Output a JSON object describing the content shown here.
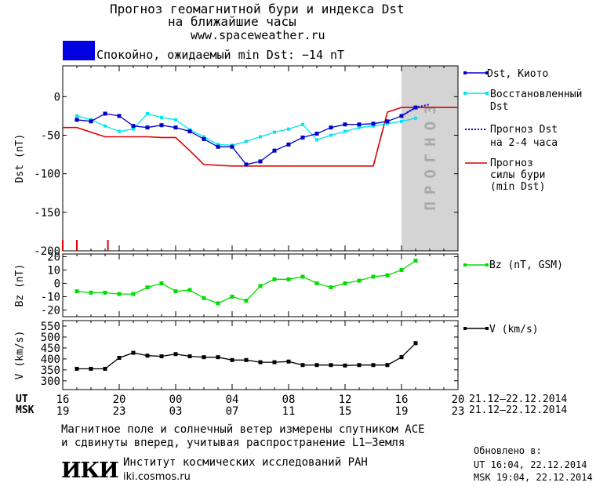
{
  "header": {
    "title_line1": "Прогноз геомагнитной бури и индекса Dst",
    "title_line2": "на ближайшие часы",
    "url": "www.spaceweather.ru",
    "status_text": "Спокойно, ожидаемый min Dst: −14 nT",
    "status_color": "#0000e0"
  },
  "colors": {
    "dst_kyoto": "#0000cc",
    "dst_restored": "#00e5ee",
    "dst_forecast": "#0000dd",
    "storm_forecast": "#dd0000",
    "bz": "#00dd00",
    "v": "#000000",
    "forecast_zone": "#d4d4d4"
  },
  "legend": {
    "dst_kyoto": "Dst, Киото",
    "restored_l1": "Восстановленный",
    "restored_l2": "Dst",
    "forecast_l1": "Прогноз Dst",
    "forecast_l2": "на 2-4 часа",
    "storm_l1": "Прогноз",
    "storm_l2": "силы бури",
    "storm_l3": "(min Dst)",
    "bz": "Bz (nT, GSM)",
    "v": "V (km/s)"
  },
  "forecast_zone_label": "ПРОГНОЗ",
  "time_axis": {
    "ut_label": "UT",
    "msk_label": "MSK",
    "ut_ticks": [
      "16",
      "20",
      "00",
      "04",
      "08",
      "12",
      "16",
      "20"
    ],
    "msk_ticks": [
      "19",
      "23",
      "03",
      "07",
      "11",
      "15",
      "19",
      "23"
    ],
    "ut_range": "21.12–22.12.2014",
    "msk_range": "21.12–22.12.2014"
  },
  "footer": {
    "note_l1": "Магнитное поле и солнечный ветер измерены спутником ACE",
    "note_l2": "и сдвинуты вперед, учитывая распространение L1–Земля",
    "logo": "ИКИ",
    "institute": "Институт космических исследований РАН",
    "site": "iki.cosmos.ru",
    "updated_label": "Обновлено в:",
    "updated_ut": "UT  16:04, 22.12.2014",
    "updated_msk": "MSK 19:04, 22.12.2014"
  },
  "chart_data": [
    {
      "type": "line",
      "ylabel": "Dst (nT)",
      "xlim": [
        0,
        28
      ],
      "ylim": [
        -200,
        40
      ],
      "yticks": [
        0,
        -50,
        -100,
        -150,
        -200
      ],
      "series": [
        {
          "name": "Dst, Киото",
          "x": [
            1,
            2,
            3,
            4,
            5,
            6,
            7,
            8,
            9,
            10,
            11,
            12,
            13,
            14,
            15,
            16,
            17,
            18,
            19,
            20,
            21,
            22,
            23,
            24,
            25
          ],
          "y": [
            -30,
            -32,
            -22,
            -25,
            -38,
            -40,
            -37,
            -40,
            -45,
            -55,
            -65,
            -65,
            -88,
            -84,
            -70,
            -62,
            -53,
            -48,
            -40,
            -36,
            -36,
            -35,
            -32,
            -25,
            -14
          ]
        },
        {
          "name": "Восстановленный Dst",
          "x": [
            1,
            2,
            3,
            4,
            5,
            6,
            7,
            8,
            9,
            10,
            11,
            12,
            13,
            14,
            15,
            16,
            17,
            18,
            19,
            20,
            21,
            22,
            23,
            24,
            25
          ],
          "y": [
            -25,
            -30,
            -38,
            -45,
            -42,
            -22,
            -27,
            -30,
            -43,
            -52,
            -62,
            -63,
            -58,
            -52,
            -46,
            -42,
            -36,
            -56,
            -50,
            -45,
            -40,
            -38,
            -35,
            -32,
            -28
          ]
        },
        {
          "name": "Прогноз Dst на 2-4 часа",
          "x": [
            24,
            25,
            26
          ],
          "y": [
            -25,
            -14,
            -10
          ]
        },
        {
          "name": "Прогноз силы бури (min Dst)",
          "x": [
            -1,
            1,
            2,
            3,
            4,
            5,
            6,
            7,
            8,
            9,
            10,
            11,
            12,
            13,
            14,
            15,
            16,
            17,
            18,
            19,
            20,
            21,
            22,
            23,
            24,
            25,
            26,
            27,
            28
          ],
          "y": [
            -40,
            -40,
            -46,
            -52,
            -52,
            -52,
            -52,
            -53,
            -53,
            -70,
            -88,
            -89,
            -90,
            -90,
            -90,
            -90,
            -90,
            -90,
            -90,
            -90,
            -90,
            -90,
            -90,
            -20,
            -14,
            -14,
            -14,
            -14,
            -14
          ]
        }
      ],
      "forecast_zone_x": [
        24,
        28
      ]
    },
    {
      "type": "line",
      "ylabel": "Bz (nT)",
      "xlim": [
        0,
        28
      ],
      "ylim": [
        -25,
        22
      ],
      "yticks": [
        20,
        10,
        0,
        -10,
        -20
      ],
      "series": [
        {
          "name": "Bz (nT, GSM)",
          "x": [
            1,
            2,
            3,
            4,
            5,
            6,
            7,
            8,
            9,
            10,
            11,
            12,
            13,
            14,
            15,
            16,
            17,
            18,
            19,
            20,
            21,
            22,
            23,
            24,
            25
          ],
          "y": [
            -6,
            -7,
            -7,
            -8,
            -8,
            -3,
            0,
            -6,
            -5,
            -11,
            -15,
            -10,
            -13,
            -2,
            3,
            3,
            5,
            0,
            -3,
            0,
            2,
            5,
            6,
            10,
            17
          ]
        }
      ]
    },
    {
      "type": "line",
      "ylabel": "V (km/s)",
      "xlim": [
        0,
        28
      ],
      "ylim": [
        260,
        575
      ],
      "yticks": [
        550,
        500,
        450,
        400,
        350,
        300
      ],
      "series": [
        {
          "name": "V (km/s)",
          "x": [
            1,
            2,
            3,
            4,
            5,
            6,
            7,
            8,
            9,
            10,
            11,
            12,
            13,
            14,
            15,
            16,
            17,
            18,
            19,
            20,
            21,
            22,
            23,
            24,
            25
          ],
          "y": [
            355,
            355,
            355,
            405,
            428,
            415,
            412,
            422,
            412,
            408,
            408,
            395,
            395,
            385,
            385,
            388,
            372,
            372,
            372,
            370,
            372,
            372,
            372,
            408,
            472
          ]
        }
      ]
    }
  ]
}
